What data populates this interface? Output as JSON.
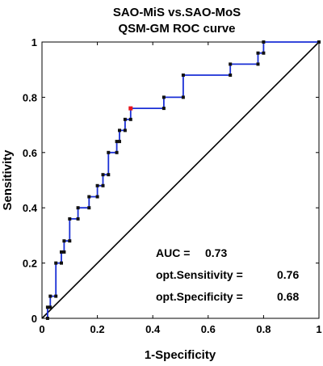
{
  "chart_data": {
    "type": "line",
    "title": [
      "SAO-MiS vs.SAO-MoS",
      "QSM-GM ROC curve"
    ],
    "xlabel": "1-Specificity",
    "ylabel": "Sensitivity",
    "xlim": [
      0,
      1
    ],
    "ylim": [
      0,
      1
    ],
    "xticks": [
      0,
      0.2,
      0.4,
      0.6,
      0.8,
      1
    ],
    "xtick_labels": [
      "0",
      "0.2",
      "0.4",
      "0.6",
      "0.8",
      "1"
    ],
    "yticks": [
      0,
      0.2,
      0.4,
      0.6,
      0.8,
      1
    ],
    "ytick_labels": [
      "0",
      "0.2",
      "0.4",
      "0.6",
      "0.8",
      "1"
    ],
    "grid": false,
    "colors": {
      "roc_line": "#1a2fd6",
      "marker": "#111111",
      "optimal_point": "#e8141b",
      "diagonal": "#000000"
    },
    "series": [
      {
        "kind": "roc",
        "x": [
          0.02,
          0.02,
          0.03,
          0.03,
          0.05,
          0.05,
          0.07,
          0.07,
          0.08,
          0.08,
          0.1,
          0.1,
          0.13,
          0.13,
          0.17,
          0.17,
          0.2,
          0.2,
          0.22,
          0.22,
          0.24,
          0.24,
          0.27,
          0.27,
          0.28,
          0.28,
          0.3,
          0.3,
          0.32,
          0.32,
          0.44,
          0.44,
          0.51,
          0.51,
          0.68,
          0.68,
          0.78,
          0.78,
          0.8,
          0.8,
          1.0
        ],
        "y": [
          0.0,
          0.04,
          0.04,
          0.08,
          0.08,
          0.2,
          0.2,
          0.24,
          0.24,
          0.28,
          0.28,
          0.36,
          0.36,
          0.4,
          0.4,
          0.44,
          0.44,
          0.48,
          0.48,
          0.52,
          0.52,
          0.6,
          0.6,
          0.64,
          0.64,
          0.68,
          0.68,
          0.72,
          0.72,
          0.76,
          0.76,
          0.8,
          0.8,
          0.88,
          0.88,
          0.92,
          0.92,
          0.96,
          0.96,
          1.0,
          1.0
        ]
      },
      {
        "kind": "chance-diagonal",
        "x": [
          0.0,
          1.0
        ],
        "y": [
          0.0,
          1.0
        ]
      }
    ],
    "optimal_point": {
      "x": 0.32,
      "y": 0.76
    },
    "annotations": {
      "auc_label": "AUC =",
      "auc_value": "0.73",
      "sens_label": "opt.Sensitivity =",
      "sens_value": "0.76",
      "spec_label": "opt.Specificity =",
      "spec_value": "0.68"
    }
  }
}
